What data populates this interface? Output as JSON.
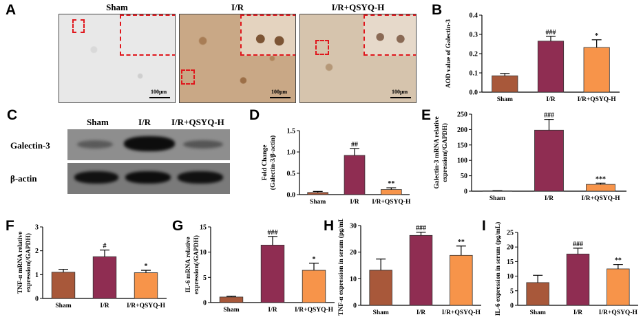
{
  "colors": {
    "sham": "#a8583a",
    "ir": "#8f2d52",
    "qsyq": "#f7944a"
  },
  "panel_a": {
    "label": "A",
    "images": [
      {
        "title": "Sham",
        "scale": "100μm"
      },
      {
        "title": "I/R",
        "scale": "100μm"
      },
      {
        "title": "I/R+QSYQ-H",
        "scale": "100μm"
      }
    ]
  },
  "panel_c": {
    "label": "C",
    "lanes": [
      "Sham",
      "I/R",
      "I/R+QSYQ-H"
    ],
    "rows": [
      "Galectin-3",
      "β-actin"
    ]
  },
  "chart_data": [
    {
      "id": "B",
      "type": "bar",
      "categories": [
        "Sham",
        "I/R",
        "I/R+QSYQ-H"
      ],
      "values": [
        0.085,
        0.265,
        0.232
      ],
      "errors": [
        0.012,
        0.025,
        0.04
      ],
      "sig": [
        "",
        "###",
        "*"
      ],
      "ylabel": [
        "AOD value of Galectin-3"
      ],
      "ylim": [
        0,
        0.4
      ],
      "yticks": [
        "0.0",
        "0.1",
        "0.2",
        "0.3",
        "0.4"
      ]
    },
    {
      "id": "D",
      "type": "bar",
      "categories": [
        "Sham",
        "I/R",
        "I/R+QSYQ-H"
      ],
      "values": [
        0.05,
        0.92,
        0.12
      ],
      "errors": [
        0.025,
        0.16,
        0.04
      ],
      "sig": [
        "",
        "##",
        "**"
      ],
      "ylabel": [
        "Fold Change",
        "(Galectin-3/β-actin)"
      ],
      "ylim": [
        0,
        1.5
      ],
      "yticks": [
        "0.0",
        "0.5",
        "1.0",
        "1.5"
      ]
    },
    {
      "id": "E",
      "type": "bar",
      "categories": [
        "Sham",
        "I/R",
        "I/R+QSYQ-H"
      ],
      "values": [
        1,
        198,
        22
      ],
      "errors": [
        0.5,
        35,
        4
      ],
      "sig": [
        "",
        "###",
        "***"
      ],
      "ylabel": [
        "Galectin-3 mRNA relative",
        "expression(/GAPDH)"
      ],
      "ylim": [
        0,
        250
      ],
      "yticks": [
        "0",
        "50",
        "100",
        "150",
        "200",
        "250"
      ]
    },
    {
      "id": "F",
      "type": "bar",
      "categories": [
        "Sham",
        "I/R",
        "I/R+QSYQ-H"
      ],
      "values": [
        1.1,
        1.75,
        1.08
      ],
      "errors": [
        0.12,
        0.28,
        0.1
      ],
      "sig": [
        "",
        "#",
        "*"
      ],
      "ylabel": [
        "TNF-α mRNA relative",
        "expression(/GAPDH)"
      ],
      "ylim": [
        0,
        3
      ],
      "yticks": [
        "0",
        "1",
        "2",
        "3"
      ]
    },
    {
      "id": "G",
      "type": "bar",
      "categories": [
        "Sham",
        "I/R",
        "I/R+QSYQ-H"
      ],
      "values": [
        1.1,
        11.4,
        6.4
      ],
      "errors": [
        0.15,
        1.7,
        1.4
      ],
      "sig": [
        "",
        "###",
        "*"
      ],
      "ylabel": [
        "IL-6 mRNA relative",
        "expression(/GAPDH)"
      ],
      "ylim": [
        0,
        15
      ],
      "yticks": [
        "0",
        "5",
        "10",
        "15"
      ]
    },
    {
      "id": "H",
      "type": "bar",
      "categories": [
        "Sham",
        "I/R",
        "I/R+QSYQ-H"
      ],
      "values": [
        13.2,
        26.3,
        18.8
      ],
      "errors": [
        4.2,
        1.2,
        3.5
      ],
      "sig": [
        "",
        "###",
        "**"
      ],
      "ylabel": [
        "TNF-α expression in serum (pg/mL)"
      ],
      "ylim": [
        0,
        30
      ],
      "yticks": [
        "0",
        "10",
        "20",
        "30"
      ]
    },
    {
      "id": "I",
      "type": "bar",
      "categories": [
        "Sham",
        "I/R",
        "I/R+QSYQ-H"
      ],
      "values": [
        7.8,
        17.6,
        12.5
      ],
      "errors": [
        2.5,
        2.0,
        1.5
      ],
      "sig": [
        "",
        "###",
        "**"
      ],
      "ylabel": [
        "IL-6 expression in serum (pg/mL)"
      ],
      "ylim": [
        0,
        25
      ],
      "yticks": [
        "0",
        "5",
        "10",
        "15",
        "20",
        "25"
      ]
    }
  ]
}
